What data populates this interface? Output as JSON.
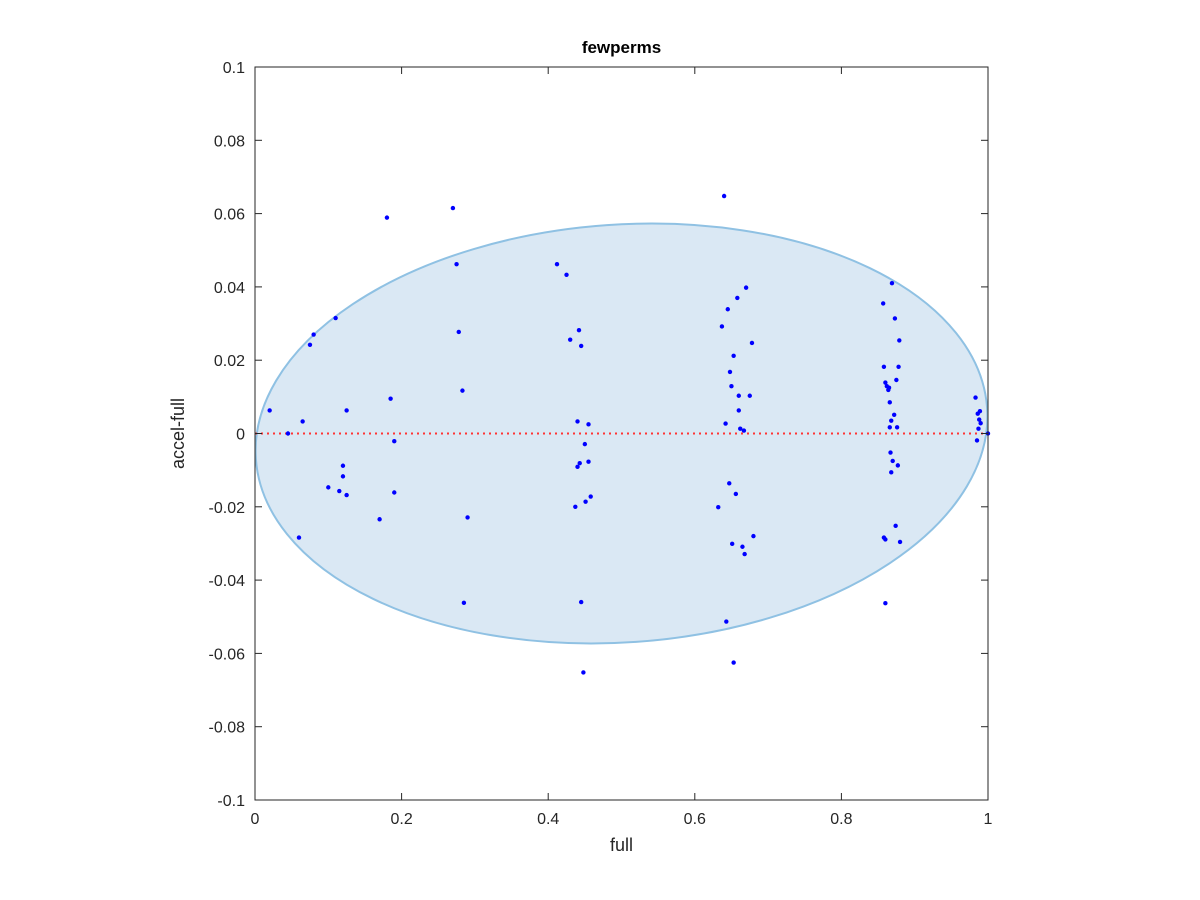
{
  "chart_data": {
    "type": "scatter",
    "title": "fewperms",
    "xlabel": "full",
    "ylabel": "accel-full",
    "xlim": [
      0,
      1
    ],
    "ylim": [
      -0.1,
      0.1
    ],
    "x_ticks": [
      {
        "value": 0,
        "label": "0"
      },
      {
        "value": 0.2,
        "label": "0.2"
      },
      {
        "value": 0.4,
        "label": "0.4"
      },
      {
        "value": 0.6,
        "label": "0.6"
      },
      {
        "value": 0.8,
        "label": "0.8"
      },
      {
        "value": 1,
        "label": "1"
      }
    ],
    "y_ticks": [
      {
        "value": 0.1,
        "label": "0.1"
      },
      {
        "value": 0.08,
        "label": "0.08"
      },
      {
        "value": 0.06,
        "label": "0.06"
      },
      {
        "value": 0.04,
        "label": "0.04"
      },
      {
        "value": 0.02,
        "label": "0.02"
      },
      {
        "value": 0,
        "label": "0"
      },
      {
        "value": -0.02,
        "label": "-0.02"
      },
      {
        "value": -0.04,
        "label": "-0.04"
      },
      {
        "value": -0.06,
        "label": "-0.06"
      },
      {
        "value": -0.08,
        "label": "-0.08"
      },
      {
        "value": -0.1,
        "label": "-0.1"
      }
    ],
    "grid": false,
    "reference_line": {
      "y": 0,
      "color": "#ff3333",
      "style": "dotted"
    },
    "ellipse": {
      "center_x": 0.5,
      "center_y": 0.0,
      "radius_x": 0.5,
      "radius_y": 0.057,
      "rotation_deg": -4,
      "fill": "#dae8f4",
      "stroke": "#8fc1e3"
    },
    "point_color": "#0000ff",
    "series": [
      {
        "x": [
          0.02,
          0.045,
          0.06,
          0.065,
          0.075,
          0.08,
          0.1,
          0.11,
          0.115,
          0.12,
          0.12,
          0.125,
          0.125,
          0.17,
          0.18,
          0.185,
          0.19,
          0.19,
          0.27,
          0.275,
          0.278,
          0.283,
          0.285,
          0.29,
          0.412,
          0.425,
          0.43,
          0.437,
          0.44,
          0.44,
          0.442,
          0.443,
          0.445,
          0.445,
          0.448,
          0.45,
          0.451,
          0.455,
          0.455,
          0.458,
          0.632,
          0.637,
          0.64,
          0.642,
          0.643,
          0.645,
          0.647,
          0.648,
          0.65,
          0.651,
          0.653,
          0.653,
          0.656,
          0.658,
          0.66,
          0.66,
          0.662,
          0.665,
          0.667,
          0.668,
          0.67,
          0.675,
          0.678,
          0.68,
          0.857,
          0.858,
          0.858,
          0.86,
          0.86,
          0.86,
          0.862,
          0.864,
          0.865,
          0.866,
          0.866,
          0.867,
          0.868,
          0.868,
          0.869,
          0.87,
          0.872,
          0.873,
          0.874,
          0.875,
          0.876,
          0.877,
          0.878,
          0.879,
          0.88,
          0.983,
          0.985,
          0.986,
          0.987,
          0.988,
          0.989,
          0.99,
          1.0
        ],
        "y": [
          0.0063,
          0.0,
          -0.0284,
          0.0033,
          0.0242,
          0.027,
          -0.0147,
          0.0315,
          -0.0157,
          -0.0088,
          -0.0117,
          0.0063,
          -0.0168,
          -0.0234,
          0.0589,
          0.0095,
          -0.0021,
          -0.0161,
          0.0615,
          0.0462,
          0.0277,
          0.0117,
          -0.0462,
          -0.0229,
          0.0462,
          0.0433,
          0.0256,
          -0.02,
          -0.0091,
          0.0033,
          0.0282,
          -0.0081,
          0.0239,
          -0.046,
          -0.0652,
          -0.0029,
          -0.0186,
          0.0025,
          -0.0077,
          -0.0172,
          -0.0201,
          0.0292,
          0.0648,
          0.0027,
          -0.0513,
          0.0339,
          -0.0136,
          0.0168,
          0.0129,
          -0.0301,
          0.0212,
          -0.0625,
          -0.0165,
          0.037,
          0.0063,
          0.0103,
          0.0013,
          -0.0309,
          0.0008,
          -0.0329,
          0.0398,
          0.0103,
          0.0247,
          -0.028,
          0.0355,
          0.0182,
          -0.0284,
          -0.0289,
          0.0139,
          -0.0463,
          0.0129,
          0.0119,
          0.0125,
          0.0017,
          0.0085,
          -0.0052,
          0.0035,
          -0.0106,
          0.041,
          -0.0075,
          0.0051,
          0.0314,
          -0.0252,
          0.0146,
          0.0017,
          -0.0087,
          0.0182,
          0.0254,
          -0.0296,
          0.0098,
          -0.0019,
          0.0054,
          0.0013,
          0.0038,
          0.0061,
          0.0028,
          0.0
        ]
      }
    ]
  }
}
